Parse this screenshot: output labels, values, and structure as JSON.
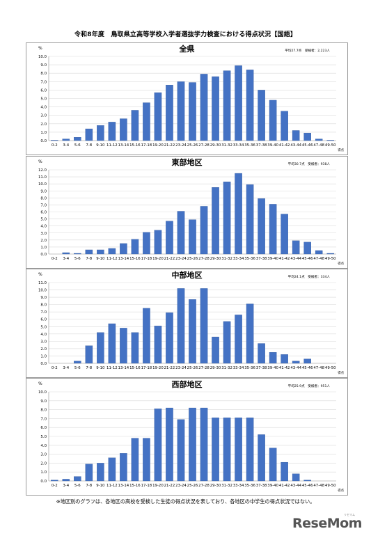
{
  "page": {
    "title": "令和8年度　鳥取県立高等学校入学者選抜学力検査における得点状況【国語】",
    "footnote": "※地区別のグラフは、各地区の高校を受検した生徒の得点状況を表しており、各地区の中学生の得点状況ではない。",
    "logo": "ReseMom",
    "logo_sub": "リセマム"
  },
  "colors": {
    "bar": "#4472c4",
    "bar_edge": "#2f5597",
    "grid": "#d9d9d9",
    "frame": "#9a9a9a"
  },
  "chart_data": [
    {
      "type": "bar",
      "title": "全県",
      "stats": "平均27.7点　受検者：2,223人",
      "ylabel": "%",
      "xlabel": "得点",
      "ylim": [
        0,
        10
      ],
      "yticks": [
        "0.0",
        "1.0",
        "2.0",
        "3.0",
        "4.0",
        "5.0",
        "6.0",
        "7.0",
        "8.0",
        "9.0",
        "10.0"
      ],
      "categories": [
        "0-2",
        "3-4",
        "5-6",
        "7-8",
        "9-10",
        "11-12",
        "13-14",
        "15-16",
        "17-18",
        "19-20",
        "21-22",
        "23-24",
        "25-26",
        "27-28",
        "29-30",
        "31-32",
        "33-34",
        "35-36",
        "37-38",
        "39-40",
        "41-42",
        "43-44",
        "45-46",
        "47-48",
        "49-50"
      ],
      "values": [
        0.05,
        0.2,
        0.4,
        1.4,
        1.8,
        2.2,
        2.6,
        3.6,
        4.5,
        5.7,
        6.6,
        7.0,
        6.9,
        7.9,
        7.6,
        8.3,
        8.9,
        8.4,
        6.0,
        4.8,
        3.5,
        1.2,
        0.9,
        0.2,
        0.05
      ]
    },
    {
      "type": "bar",
      "title": "東部地区",
      "stats": "平均30.7点　受検者：938人",
      "ylabel": "%",
      "xlabel": "得点",
      "ylim": [
        0,
        12
      ],
      "yticks": [
        "0.0",
        "1.0",
        "2.0",
        "3.0",
        "4.0",
        "5.0",
        "6.0",
        "7.0",
        "8.0",
        "9.0",
        "10.0",
        "11.0",
        "12.0"
      ],
      "categories": [
        "0-2",
        "3-4",
        "5-6",
        "7-8",
        "9-10",
        "11-12",
        "13-14",
        "15-16",
        "17-18",
        "19-20",
        "21-22",
        "23-24",
        "25-26",
        "27-28",
        "29-30",
        "31-32",
        "33-34",
        "35-36",
        "37-38",
        "39-40",
        "41-42",
        "43-44",
        "45-46",
        "47-48",
        "49-50"
      ],
      "values": [
        0.0,
        0.2,
        0.1,
        0.6,
        0.6,
        0.8,
        1.5,
        2.1,
        3.1,
        3.4,
        4.7,
        6.1,
        4.9,
        6.8,
        9.5,
        10.3,
        11.5,
        9.9,
        7.9,
        7.1,
        5.7,
        1.9,
        1.7,
        0.5,
        0.1
      ]
    },
    {
      "type": "bar",
      "title": "中部地区",
      "stats": "平均24.1点　受検者：334人",
      "ylabel": "%",
      "xlabel": "得点",
      "ylim": [
        0,
        11
      ],
      "yticks": [
        "0.0",
        "1.0",
        "2.0",
        "3.0",
        "4.0",
        "5.0",
        "6.0",
        "7.0",
        "8.0",
        "9.0",
        "10.0",
        "11.0"
      ],
      "categories": [
        "0-2",
        "3-4",
        "5-6",
        "7-8",
        "9-10",
        "11-12",
        "13-14",
        "15-16",
        "17-18",
        "19-20",
        "21-22",
        "23-24",
        "25-26",
        "27-28",
        "29-30",
        "31-32",
        "33-34",
        "35-36",
        "37-38",
        "39-40",
        "41-42",
        "43-44",
        "45-46",
        "47-48",
        "49-50"
      ],
      "values": [
        0.0,
        0.0,
        0.3,
        2.4,
        4.2,
        5.4,
        4.8,
        4.2,
        7.5,
        5.1,
        6.9,
        10.2,
        8.7,
        10.2,
        3.6,
        5.7,
        6.6,
        8.1,
        2.7,
        1.5,
        1.2,
        0.3,
        0.6,
        0.0,
        0.0
      ]
    },
    {
      "type": "bar",
      "title": "西部地区",
      "stats": "平均25.9点　受検者：951人",
      "ylabel": "%",
      "xlabel": "得点",
      "ylim": [
        0,
        10
      ],
      "yticks": [
        "0.0",
        "1.0",
        "2.0",
        "3.0",
        "4.0",
        "5.0",
        "6.0",
        "7.0",
        "8.0",
        "9.0",
        "10.0"
      ],
      "categories": [
        "0-2",
        "3-4",
        "5-6",
        "7-8",
        "9-10",
        "11-12",
        "13-14",
        "15-16",
        "17-18",
        "19-20",
        "21-22",
        "23-24",
        "25-26",
        "27-28",
        "29-30",
        "31-32",
        "33-34",
        "35-36",
        "37-38",
        "39-40",
        "41-42",
        "43-44",
        "45-46",
        "47-48",
        "49-50"
      ],
      "values": [
        0.1,
        0.2,
        0.5,
        1.9,
        2.0,
        2.6,
        3.1,
        4.8,
        4.8,
        8.1,
        8.2,
        6.9,
        8.2,
        8.2,
        7.1,
        7.1,
        7.1,
        7.1,
        5.2,
        3.7,
        2.1,
        0.8,
        0.1,
        0.0,
        0.0
      ]
    }
  ]
}
